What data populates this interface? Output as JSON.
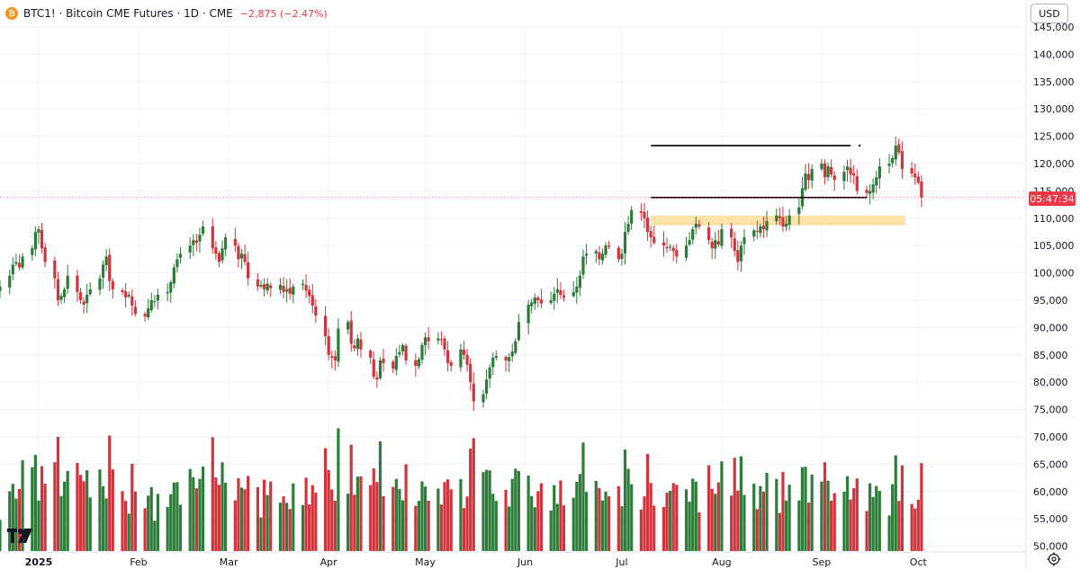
{
  "header": {
    "coin_icon": "bitcoin-icon",
    "coin_glyph": "₿",
    "title": "BTC1! · Bitcoin CME Futures · 1D · CME",
    "change": "−2,875 (−2.47%)"
  },
  "currency_selector": {
    "label": "USD"
  },
  "price_tag": {
    "label": "05:47:34"
  },
  "colors": {
    "up": "#2d7a3a",
    "down": "#d0343c",
    "volume_up": "#2f7d3b",
    "volume_down": "#d0343c",
    "zone": "#fde2a8",
    "grid": "#f0f3fa",
    "price_tag_bg": "#f23645"
  },
  "chart_data": {
    "type": "candlestick",
    "title": "",
    "y_axis": {
      "labels": [
        "145,000",
        "140,000",
        "135,000",
        "130,000",
        "125,000",
        "120,000",
        "115,000",
        "110,000",
        "105,000",
        "100,000",
        "95,000",
        "90,000",
        "85,000",
        "80,000",
        "75,000",
        "70,000",
        "65,000",
        "60,000",
        "55,000",
        "50,000"
      ],
      "range": [
        49000,
        148000
      ]
    },
    "x_axis": {
      "labels": [
        {
          "text": "2025",
          "bold": true
        },
        {
          "text": "Feb",
          "bold": false
        },
        {
          "text": "Mar",
          "bold": false
        },
        {
          "text": "Apr",
          "bold": false
        },
        {
          "text": "May",
          "bold": false
        },
        {
          "text": "Jun",
          "bold": false
        },
        {
          "text": "Jul",
          "bold": false
        },
        {
          "text": "Aug",
          "bold": false
        },
        {
          "text": "Sep",
          "bold": false
        },
        {
          "text": "Oct",
          "bold": false
        }
      ]
    },
    "closes_approx": [
      97500,
      99500,
      101500,
      102000,
      101000,
      103000,
      104500,
      107500,
      108000,
      104500,
      102000,
      99000,
      95000,
      95800,
      97000,
      99500,
      96500,
      95000,
      94200,
      96000,
      97000,
      99000,
      101500,
      103000,
      98500,
      97000,
      96500,
      95500,
      96000,
      94000,
      92500,
      92000,
      93500,
      95000,
      94800,
      96000,
      96500,
      98300,
      101000,
      102500,
      103500,
      105000,
      106000,
      105500,
      107000,
      108500,
      104500,
      103500,
      102000,
      104500,
      106500,
      105000,
      102500,
      103500,
      102000,
      99000,
      97500,
      97800,
      97000,
      98000,
      97200,
      97800,
      96500,
      97000,
      96200,
      97500,
      98000,
      96800,
      95800,
      94000,
      92200,
      88400,
      85000,
      84500,
      84000,
      89800,
      91000,
      87000,
      86200,
      88000,
      86000,
      84500,
      81000,
      80500,
      84000,
      83500,
      82500,
      84800,
      85500,
      86800,
      84000,
      83000,
      84200,
      86800,
      88200,
      87500,
      88000,
      87800,
      86000,
      83500,
      83000,
      86000,
      85000,
      83200,
      80000,
      76500,
      77800,
      80500,
      82700,
      84500,
      84800,
      84000,
      84600,
      85600,
      87500,
      91000,
      94200,
      94600,
      95500,
      95000,
      94400,
      95000,
      96200,
      97000,
      96000,
      95500,
      96500,
      97500,
      99500,
      103000,
      103500,
      104000,
      102500,
      103500,
      105000,
      104800,
      102500,
      103500,
      107500,
      109000,
      111500,
      111000,
      110000,
      107500,
      106500,
      105500,
      105000,
      104500,
      104800,
      104000,
      103000,
      105000,
      106000,
      108000,
      109000,
      108500,
      106000,
      104500,
      106000,
      105200,
      108000,
      106500,
      104000,
      102000,
      105000,
      106500,
      107800,
      107500,
      108500,
      108000,
      109500,
      110500,
      110000,
      108500,
      109000,
      110500,
      112000,
      115500,
      118200,
      117000,
      119000,
      120000,
      117500,
      119500,
      118000,
      117000,
      118500,
      119500,
      118000,
      117800,
      115000,
      114600,
      115000,
      116200,
      117500,
      119500,
      120000,
      121000,
      123300,
      122000,
      119000,
      118200,
      117500,
      116500,
      113800
    ]
  },
  "annotations": {
    "resistance_line": {
      "start": "2025-07-10",
      "end": "2025-09-10",
      "price": 123300
    },
    "support_line": {
      "start": "2025-07-10",
      "end": "2025-09-15",
      "price": 113800
    },
    "demand_zone": {
      "start": "2025-07-10",
      "end": "2025-09-27",
      "price_from": 108700,
      "price_to": 110500
    }
  }
}
